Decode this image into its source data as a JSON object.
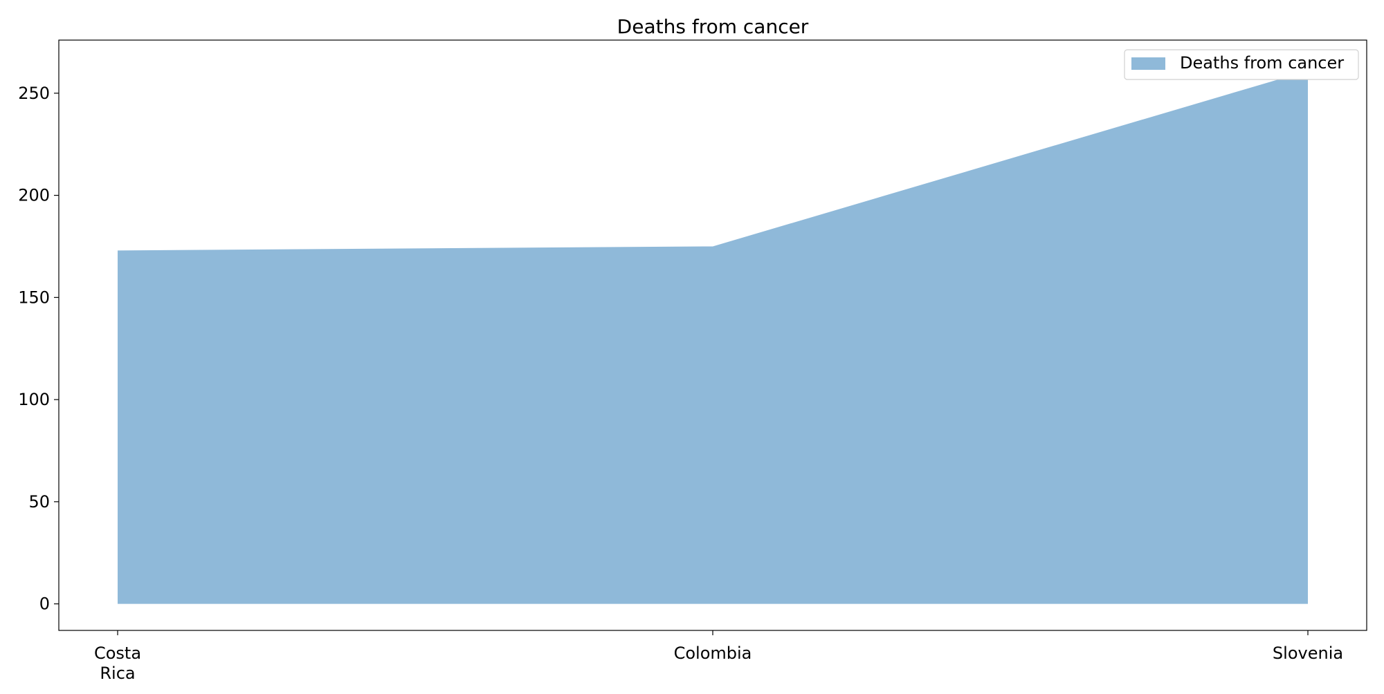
{
  "chart_data": {
    "type": "area",
    "title": "Deaths from cancer",
    "xlabel": "",
    "ylabel": "",
    "categories": [
      [
        "Costa",
        "Rica"
      ],
      [
        "Colombia"
      ],
      [
        "Slovenia"
      ]
    ],
    "series": [
      {
        "name": "Deaths from cancer",
        "values": [
          173,
          175,
          261
        ],
        "color": "#8fb9d9"
      }
    ],
    "ylim": [
      -13,
      276
    ],
    "yticks": [
      0,
      50,
      100,
      150,
      200,
      250
    ],
    "grid": false,
    "legend_position": "top-right"
  }
}
